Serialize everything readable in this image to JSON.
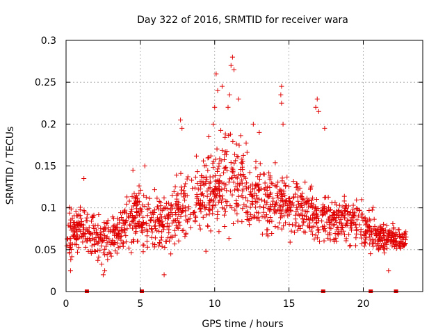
{
  "chart_data": {
    "type": "scatter",
    "title": "Day 322 of 2016, SRMTID for receiver wara",
    "xlabel": "GPS time / hours",
    "ylabel": "SRMTID / TECUs",
    "xlim": [
      0,
      24
    ],
    "ylim": [
      0,
      0.3
    ],
    "xticks": [
      0,
      5,
      10,
      15,
      20
    ],
    "yticks": [
      0,
      0.05,
      0.1,
      0.15,
      0.2,
      0.25,
      0.3
    ],
    "xtick_labels": [
      "0",
      "5",
      "10",
      "15",
      "20"
    ],
    "ytick_labels": [
      "0",
      "0.05",
      "0.1",
      "0.15",
      "0.2",
      "0.25",
      "0.3"
    ],
    "grid": true,
    "marker": "plus",
    "color": "#e00000",
    "envelope": {
      "description": "approximate trend of the scatter cloud per hour block",
      "hours": [
        0,
        1,
        2,
        3,
        4,
        5,
        6,
        7,
        8,
        9,
        10,
        11,
        12,
        13,
        14,
        15,
        16,
        17,
        18,
        19,
        20,
        21,
        22,
        23
      ],
      "mean": [
        0.065,
        0.08,
        0.06,
        0.065,
        0.08,
        0.09,
        0.085,
        0.085,
        0.105,
        0.11,
        0.125,
        0.14,
        0.12,
        0.11,
        0.11,
        0.105,
        0.1,
        0.09,
        0.085,
        0.085,
        0.08,
        0.065,
        0.062,
        0.062
      ],
      "spread": [
        0.025,
        0.025,
        0.02,
        0.022,
        0.03,
        0.03,
        0.028,
        0.03,
        0.035,
        0.035,
        0.045,
        0.05,
        0.04,
        0.035,
        0.035,
        0.03,
        0.03,
        0.028,
        0.025,
        0.025,
        0.025,
        0.015,
        0.012,
        0.012
      ]
    },
    "peaks": [
      {
        "x": 7.7,
        "y": 0.205
      },
      {
        "x": 7.8,
        "y": 0.195
      },
      {
        "x": 10.1,
        "y": 0.26
      },
      {
        "x": 10.2,
        "y": 0.24
      },
      {
        "x": 10.5,
        "y": 0.245
      },
      {
        "x": 11.2,
        "y": 0.28
      },
      {
        "x": 11.1,
        "y": 0.27
      },
      {
        "x": 11.3,
        "y": 0.265
      },
      {
        "x": 11.0,
        "y": 0.235
      },
      {
        "x": 10.9,
        "y": 0.22
      },
      {
        "x": 10.0,
        "y": 0.22
      },
      {
        "x": 11.6,
        "y": 0.23
      },
      {
        "x": 14.5,
        "y": 0.245
      },
      {
        "x": 14.45,
        "y": 0.235
      },
      {
        "x": 14.5,
        "y": 0.225
      },
      {
        "x": 14.6,
        "y": 0.2
      },
      {
        "x": 16.9,
        "y": 0.23
      },
      {
        "x": 16.8,
        "y": 0.22
      },
      {
        "x": 17.0,
        "y": 0.215
      },
      {
        "x": 17.4,
        "y": 0.195
      },
      {
        "x": 12.6,
        "y": 0.2
      },
      {
        "x": 13.0,
        "y": 0.19
      },
      {
        "x": 9.6,
        "y": 0.185
      },
      {
        "x": 9.9,
        "y": 0.2
      },
      {
        "x": 2.5,
        "y": 0.02
      },
      {
        "x": 2.6,
        "y": 0.025
      },
      {
        "x": 0.3,
        "y": 0.025
      },
      {
        "x": 21.7,
        "y": 0.025
      },
      {
        "x": 6.6,
        "y": 0.02
      },
      {
        "x": 1.2,
        "y": 0.135
      },
      {
        "x": 4.5,
        "y": 0.145
      },
      {
        "x": 5.3,
        "y": 0.15
      }
    ],
    "gap_markers_x": [
      1.4,
      5.1,
      17.3,
      20.5,
      22.2
    ]
  }
}
